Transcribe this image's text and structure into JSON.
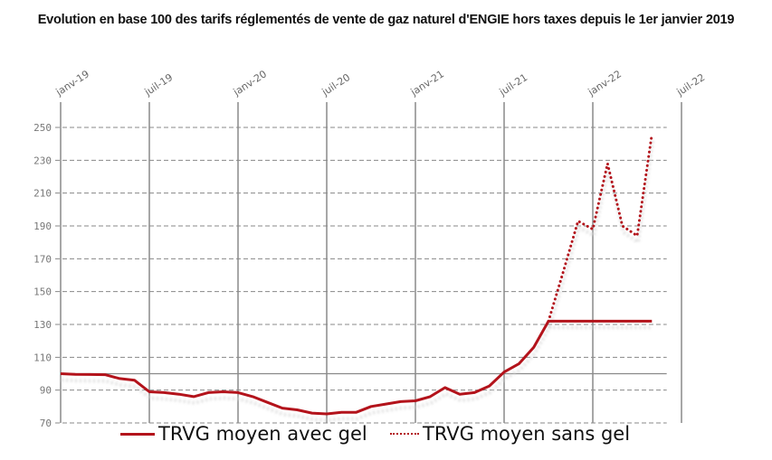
{
  "title": "Evolution en base 100 des tarifs réglementés de vente de gaz naturel d'ENGIE hors taxes depuis le 1er janvier 2019",
  "chart_data": {
    "type": "line",
    "title": "Evolution en base 100 des tarifs réglementés de vente de gaz naturel d'ENGIE hors taxes depuis le 1er janvier 2019",
    "xlabel": "",
    "ylabel": "",
    "x_ticks": [
      "janv-19",
      "juil-19",
      "janv-20",
      "juil-20",
      "janv-21",
      "juil-21",
      "janv-22",
      "juil-22"
    ],
    "y_ticks": [
      70,
      90,
      110,
      130,
      150,
      170,
      190,
      210,
      230,
      250
    ],
    "ylim": [
      70,
      265
    ],
    "grid": true,
    "reference_line": 100,
    "legend_position": "bottom",
    "x": [
      "2019-01",
      "2019-02",
      "2019-03",
      "2019-04",
      "2019-05",
      "2019-06",
      "2019-07",
      "2019-08",
      "2019-09",
      "2019-10",
      "2019-11",
      "2019-12",
      "2020-01",
      "2020-02",
      "2020-03",
      "2020-04",
      "2020-05",
      "2020-06",
      "2020-07",
      "2020-08",
      "2020-09",
      "2020-10",
      "2020-11",
      "2020-12",
      "2021-01",
      "2021-02",
      "2021-03",
      "2021-04",
      "2021-05",
      "2021-06",
      "2021-07",
      "2021-08",
      "2021-09",
      "2021-10",
      "2021-11",
      "2021-12",
      "2022-01",
      "2022-02",
      "2022-03",
      "2022-04",
      "2022-05"
    ],
    "series": [
      {
        "name": "TRVG moyen avec gel",
        "style": "solid",
        "color": "#b3131b",
        "values": [
          100,
          99.6,
          99.5,
          99.4,
          97,
          96,
          89,
          88.5,
          87.5,
          86,
          88.5,
          89,
          88.5,
          86,
          82.5,
          79,
          78,
          76,
          75.5,
          76.5,
          76.5,
          80,
          81.5,
          83,
          83.5,
          86,
          91.5,
          87.5,
          88.5,
          92.5,
          101,
          106,
          116,
          132,
          132,
          132,
          132,
          132,
          132,
          132,
          132
        ]
      },
      {
        "name": "TRVG moyen sans gel",
        "style": "dotted",
        "color": "#b3131b",
        "values": [
          null,
          null,
          null,
          null,
          null,
          null,
          null,
          null,
          null,
          null,
          null,
          null,
          null,
          null,
          null,
          null,
          null,
          null,
          null,
          null,
          null,
          null,
          null,
          null,
          null,
          null,
          null,
          null,
          null,
          null,
          null,
          null,
          null,
          132,
          162,
          193,
          188,
          228,
          190,
          184,
          246
        ]
      }
    ]
  },
  "legend": {
    "item1": "TRVG moyen avec gel",
    "item2": "TRVG moyen sans gel"
  }
}
